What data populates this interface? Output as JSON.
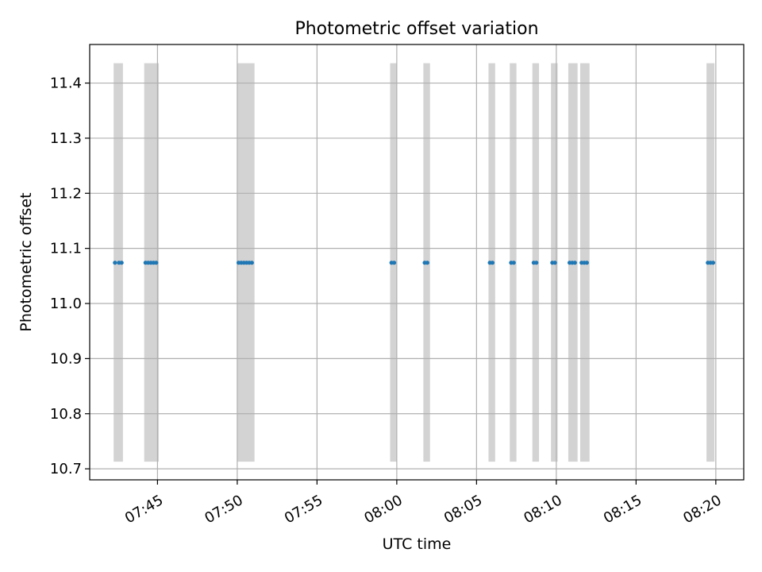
{
  "chart_data": {
    "type": "scatter",
    "title": "Photometric offset variation",
    "xlabel": "UTC time",
    "ylabel": "Photometric offset",
    "grid": true,
    "xlim": [
      "07:40:45",
      "08:21:45"
    ],
    "ylim": [
      10.68,
      11.47
    ],
    "xticks": [
      "07:45",
      "07:50",
      "07:55",
      "08:00",
      "08:05",
      "08:10",
      "08:15",
      "08:20"
    ],
    "yticks": [
      "10.7",
      "10.8",
      "10.9",
      "11.0",
      "11.1",
      "11.2",
      "11.3",
      "11.4"
    ],
    "colors": {
      "points": "#1f77b4",
      "bands": "#d3d3d3",
      "grid": "#b0b0b0"
    },
    "band_range": [
      10.713,
      11.436
    ],
    "bands": [
      [
        "07:42:15",
        "07:42:50"
      ],
      [
        "07:44:10",
        "07:45:05"
      ],
      [
        "07:50:00",
        "07:51:05"
      ],
      [
        "07:59:35",
        "08:00:00"
      ],
      [
        "08:01:40",
        "08:02:05"
      ],
      [
        "08:05:45",
        "08:06:10"
      ],
      [
        "08:07:05",
        "08:07:30"
      ],
      [
        "08:08:30",
        "08:08:55"
      ],
      [
        "08:09:40",
        "08:10:05"
      ],
      [
        "08:10:45",
        "08:11:20"
      ],
      [
        "08:11:30",
        "08:12:05"
      ],
      [
        "08:19:25",
        "08:19:55"
      ]
    ],
    "series": [
      {
        "x": [
          "07:42:20",
          "07:42:35",
          "07:42:45",
          "07:44:15",
          "07:44:25",
          "07:44:35",
          "07:44:45",
          "07:44:55",
          "07:50:05",
          "07:50:15",
          "07:50:25",
          "07:50:35",
          "07:50:45",
          "07:50:55",
          "07:59:40",
          "07:59:50",
          "08:01:45",
          "08:01:55",
          "08:05:50",
          "08:06:00",
          "08:07:10",
          "08:07:20",
          "08:08:35",
          "08:08:45",
          "08:09:45",
          "08:09:55",
          "08:10:50",
          "08:11:00",
          "08:11:10",
          "08:11:35",
          "08:11:45",
          "08:11:55",
          "08:19:30",
          "08:19:40",
          "08:19:50"
        ],
        "y": [
          11.074,
          11.074,
          11.074,
          11.074,
          11.074,
          11.074,
          11.074,
          11.074,
          11.074,
          11.074,
          11.074,
          11.074,
          11.074,
          11.074,
          11.074,
          11.074,
          11.074,
          11.074,
          11.074,
          11.074,
          11.074,
          11.074,
          11.074,
          11.074,
          11.074,
          11.074,
          11.074,
          11.074,
          11.074,
          11.074,
          11.074,
          11.074,
          11.074,
          11.074,
          11.074
        ]
      }
    ]
  }
}
